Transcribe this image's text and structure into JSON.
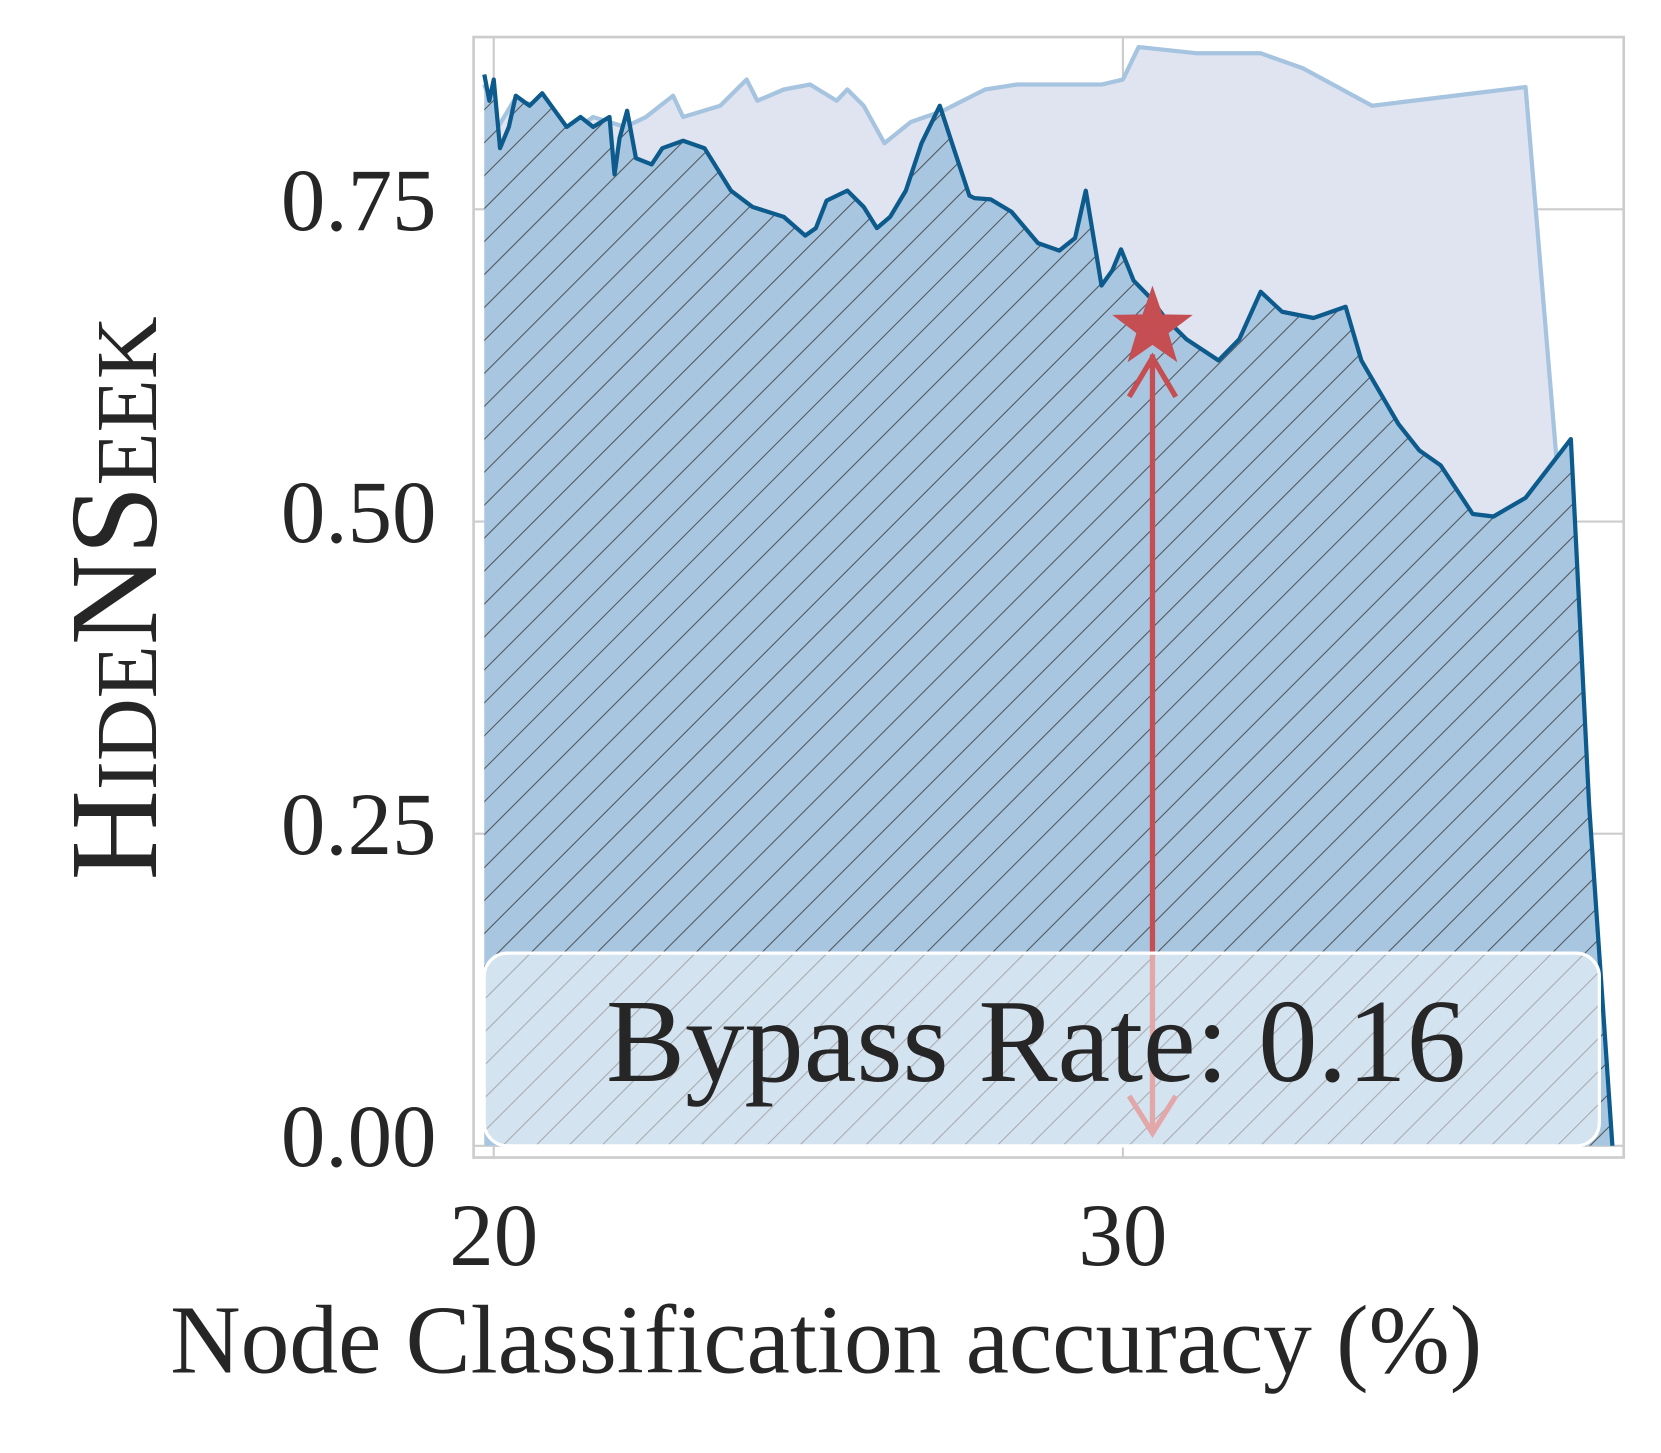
{
  "chart_data": {
    "type": "area",
    "x_label": "Node Classification accuracy (%)",
    "y_label": "HideNSeek",
    "xlim": [
      19.68,
      37.96
    ],
    "ylim": [
      -0.0094,
      0.888
    ],
    "xticks": [
      20,
      30
    ],
    "yticks": [
      {
        "value": 0,
        "label": "0.00"
      },
      {
        "value": 0.25,
        "label": "0.25"
      },
      {
        "value": 0.5,
        "label": "0.50"
      },
      {
        "value": 0.75,
        "label": "0.75"
      }
    ],
    "grid": true,
    "series": [
      {
        "color": "#a6c4df",
        "fill": "#dfe4f0",
        "x": [
          19.85,
          20.07,
          20.32,
          20.74,
          21.25,
          21.58,
          22.09,
          22.42,
          22.85,
          23.01,
          23.6,
          24.02,
          24.19,
          24.61,
          25.03,
          25.45,
          25.62,
          25.88,
          26.21,
          26.63,
          27.14,
          27.81,
          28.32,
          29.66,
          30.0,
          30.25,
          31.18,
          32.19,
          32.86,
          33.96,
          36.4,
          36.9
        ],
        "values": [
          0.85,
          0.816,
          0.837,
          0.833,
          0.812,
          0.824,
          0.816,
          0.824,
          0.841,
          0.824,
          0.833,
          0.854,
          0.837,
          0.846,
          0.85,
          0.837,
          0.846,
          0.833,
          0.803,
          0.82,
          0.829,
          0.846,
          0.85,
          0.85,
          0.854,
          0.88,
          0.875,
          0.875,
          0.863,
          0.833,
          0.848,
          0.545
        ]
      },
      {
        "color": "#0d5b8c",
        "fill": "#a9c6e0",
        "hatch": true,
        "x": [
          19.85,
          19.93,
          20.0,
          20.1,
          20.24,
          20.35,
          20.57,
          20.77,
          21.16,
          21.38,
          21.58,
          21.84,
          21.92,
          22.0,
          22.12,
          22.26,
          22.51,
          22.68,
          23.01,
          23.35,
          23.77,
          24.11,
          24.61,
          24.95,
          25.12,
          25.29,
          25.62,
          25.88,
          26.09,
          26.3,
          26.55,
          26.8,
          27.09,
          27.31,
          27.56,
          27.64,
          27.9,
          28.23,
          28.65,
          28.99,
          29.24,
          29.41,
          29.66,
          29.83,
          29.97,
          30.17,
          30.42,
          30.67,
          31.01,
          31.52,
          31.85,
          32.19,
          32.53,
          33.03,
          33.54,
          33.79,
          34.38,
          34.71,
          35.05,
          35.56,
          35.89,
          36.4,
          37.12,
          37.41,
          37.78
        ],
        "values": [
          0.858,
          0.837,
          0.854,
          0.799,
          0.816,
          0.841,
          0.833,
          0.843,
          0.816,
          0.824,
          0.816,
          0.824,
          0.778,
          0.807,
          0.829,
          0.791,
          0.786,
          0.799,
          0.805,
          0.799,
          0.765,
          0.752,
          0.744,
          0.729,
          0.735,
          0.757,
          0.765,
          0.752,
          0.735,
          0.744,
          0.765,
          0.803,
          0.833,
          0.799,
          0.761,
          0.759,
          0.758,
          0.748,
          0.723,
          0.717,
          0.727,
          0.765,
          0.689,
          0.701,
          0.718,
          0.693,
          0.68,
          0.663,
          0.646,
          0.629,
          0.646,
          0.684,
          0.668,
          0.663,
          0.672,
          0.629,
          0.578,
          0.557,
          0.545,
          0.506,
          0.504,
          0.519,
          0.566,
          0.273,
          0
        ]
      }
    ],
    "marker": {
      "x": 30.47,
      "y": 0.655,
      "color": "#c44e52"
    },
    "annotation": "Bypass Rate: 0.16"
  }
}
